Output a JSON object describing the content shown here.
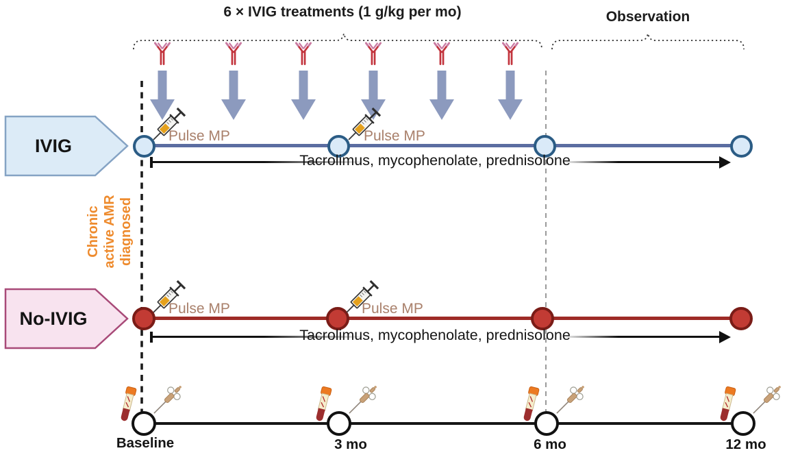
{
  "title_brackets": {
    "ivig_treatments": "6 × IVIG treatments (1 g/kg per mo)",
    "observation": "Observation"
  },
  "arms": {
    "ivig": {
      "label": "IVIG",
      "pulse_mp_1": "Pulse MP",
      "pulse_mp_2": "Pulse MP",
      "maintenance_therapy": "Tacrolimus, mycophenolate, prednisolone"
    },
    "no_ivig": {
      "label": "No-IVIG",
      "pulse_mp_1": "Pulse MP",
      "pulse_mp_2": "Pulse MP",
      "maintenance_therapy": "Tacrolimus, mycophenolate, prednisolone"
    }
  },
  "diagnosis": {
    "line1": "Chronic",
    "line2": "active AMR",
    "line3": "diagnosed"
  },
  "timeline": {
    "labels": [
      "Baseline",
      "3 mo",
      "6 mo",
      "12 mo"
    ]
  },
  "icons": {
    "antibody": "antibody-icon",
    "infusion_arrow": "infusion-arrow-icon",
    "syringe": "syringe-icon",
    "blood_tube": "blood-tube-icon",
    "biopsy_needle": "biopsy-needle-icon"
  },
  "colors": {
    "ivig_line": "#5b6da1",
    "ivig_node_fill": "#daeaf8",
    "ivig_node_border": "#2b5c85",
    "ivig_box_fill": "#dcebf7",
    "ivig_box_border": "#85a3c4",
    "no_ivig_line": "#9e2b26",
    "no_ivig_node_fill": "#c23b34",
    "no_ivig_node_border": "#7a1c17",
    "no_ivig_box_fill": "#f8e3ef",
    "no_ivig_box_border": "#a84a78",
    "pulse_mp_text": "#a9806b",
    "diagnosis_text": "#ee8b2e",
    "infusion_arrow": "#8c9abe",
    "antibody_red": "#c2333c",
    "antibody_pink": "#c97ba4"
  }
}
